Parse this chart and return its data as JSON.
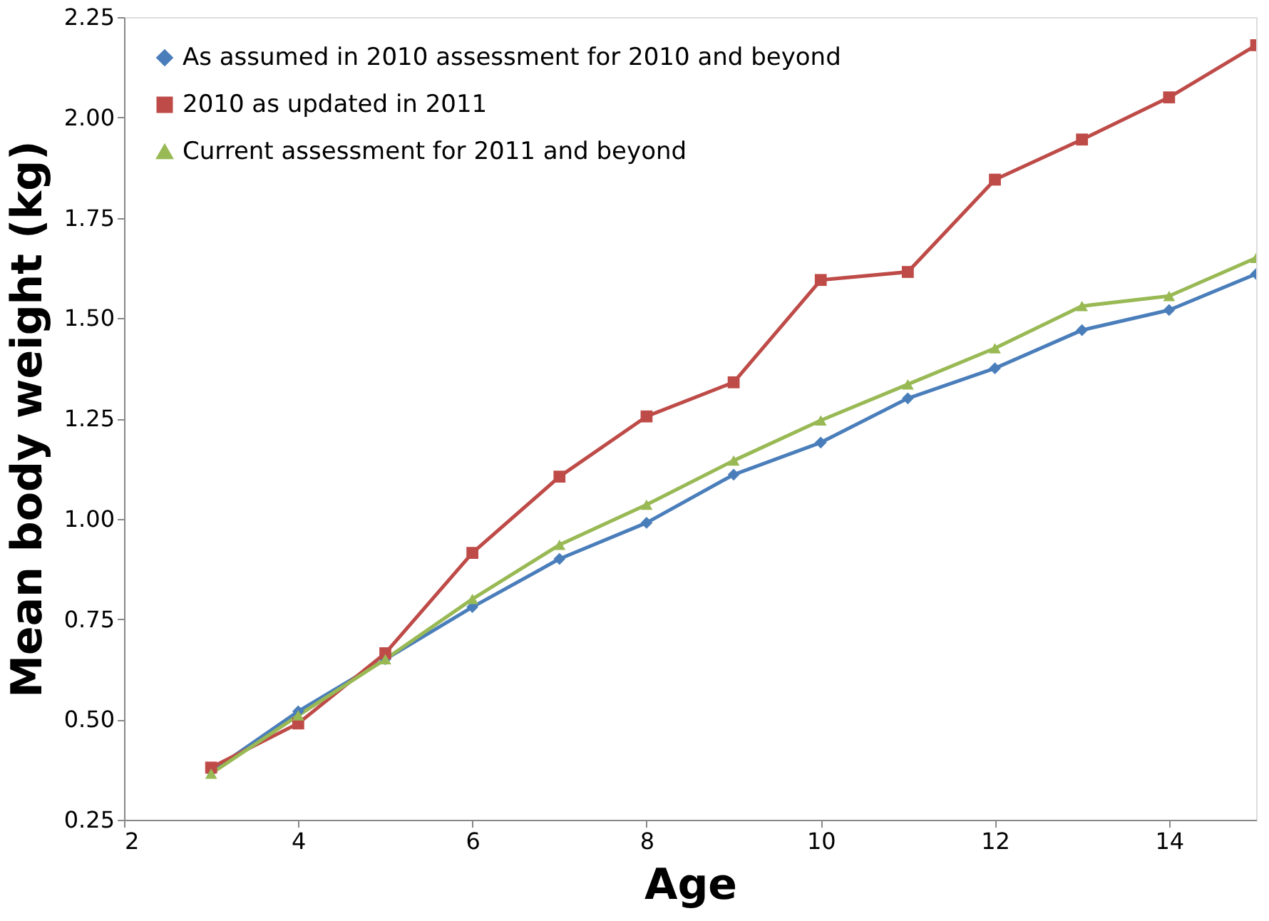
{
  "chart_data": {
    "type": "line",
    "xlabel": "Age",
    "ylabel": "Mean body weight (kg)",
    "x": [
      3,
      4,
      5,
      6,
      7,
      8,
      9,
      10,
      11,
      12,
      13,
      14,
      15
    ],
    "series": [
      {
        "name": "As assumed in 2010 assessment for 2010 and beyond",
        "color": "#4a7ebb",
        "marker": "diamond",
        "values": [
          0.37,
          0.52,
          0.65,
          0.78,
          0.9,
          0.99,
          1.11,
          1.19,
          1.3,
          1.375,
          1.47,
          1.52,
          1.61
        ]
      },
      {
        "name": "2010 as updated in 2011",
        "color": "#be4b48",
        "marker": "square",
        "values": [
          0.38,
          0.49,
          0.665,
          0.915,
          1.105,
          1.255,
          1.34,
          1.595,
          1.615,
          1.845,
          1.945,
          2.05,
          2.18
        ]
      },
      {
        "name": "Current assessment for 2011 and beyond",
        "color": "#98b954",
        "marker": "triangle",
        "values": [
          0.365,
          0.51,
          0.65,
          0.8,
          0.935,
          1.035,
          1.145,
          1.245,
          1.335,
          1.425,
          1.53,
          1.555,
          1.65
        ]
      }
    ],
    "xlim": [
      2,
      15
    ],
    "xticks": [
      2,
      4,
      6,
      8,
      10,
      12,
      14
    ],
    "ylim": [
      0.25,
      2.25
    ],
    "yticks": [
      {
        "value": 0.25,
        "label": "0.25"
      },
      {
        "value": 0.5,
        "label": "0.50"
      },
      {
        "value": 0.75,
        "label": "0.75"
      },
      {
        "value": 1.0,
        "label": "1.00"
      },
      {
        "value": 1.25,
        "label": "1.25"
      },
      {
        "value": 1.5,
        "label": "1.50"
      },
      {
        "value": 1.75,
        "label": "1.75"
      },
      {
        "value": 2.0,
        "label": "2.00"
      },
      {
        "value": 2.25,
        "label": "2.25"
      }
    ],
    "grid": false,
    "legend": "top left",
    "line_style": "solid"
  }
}
